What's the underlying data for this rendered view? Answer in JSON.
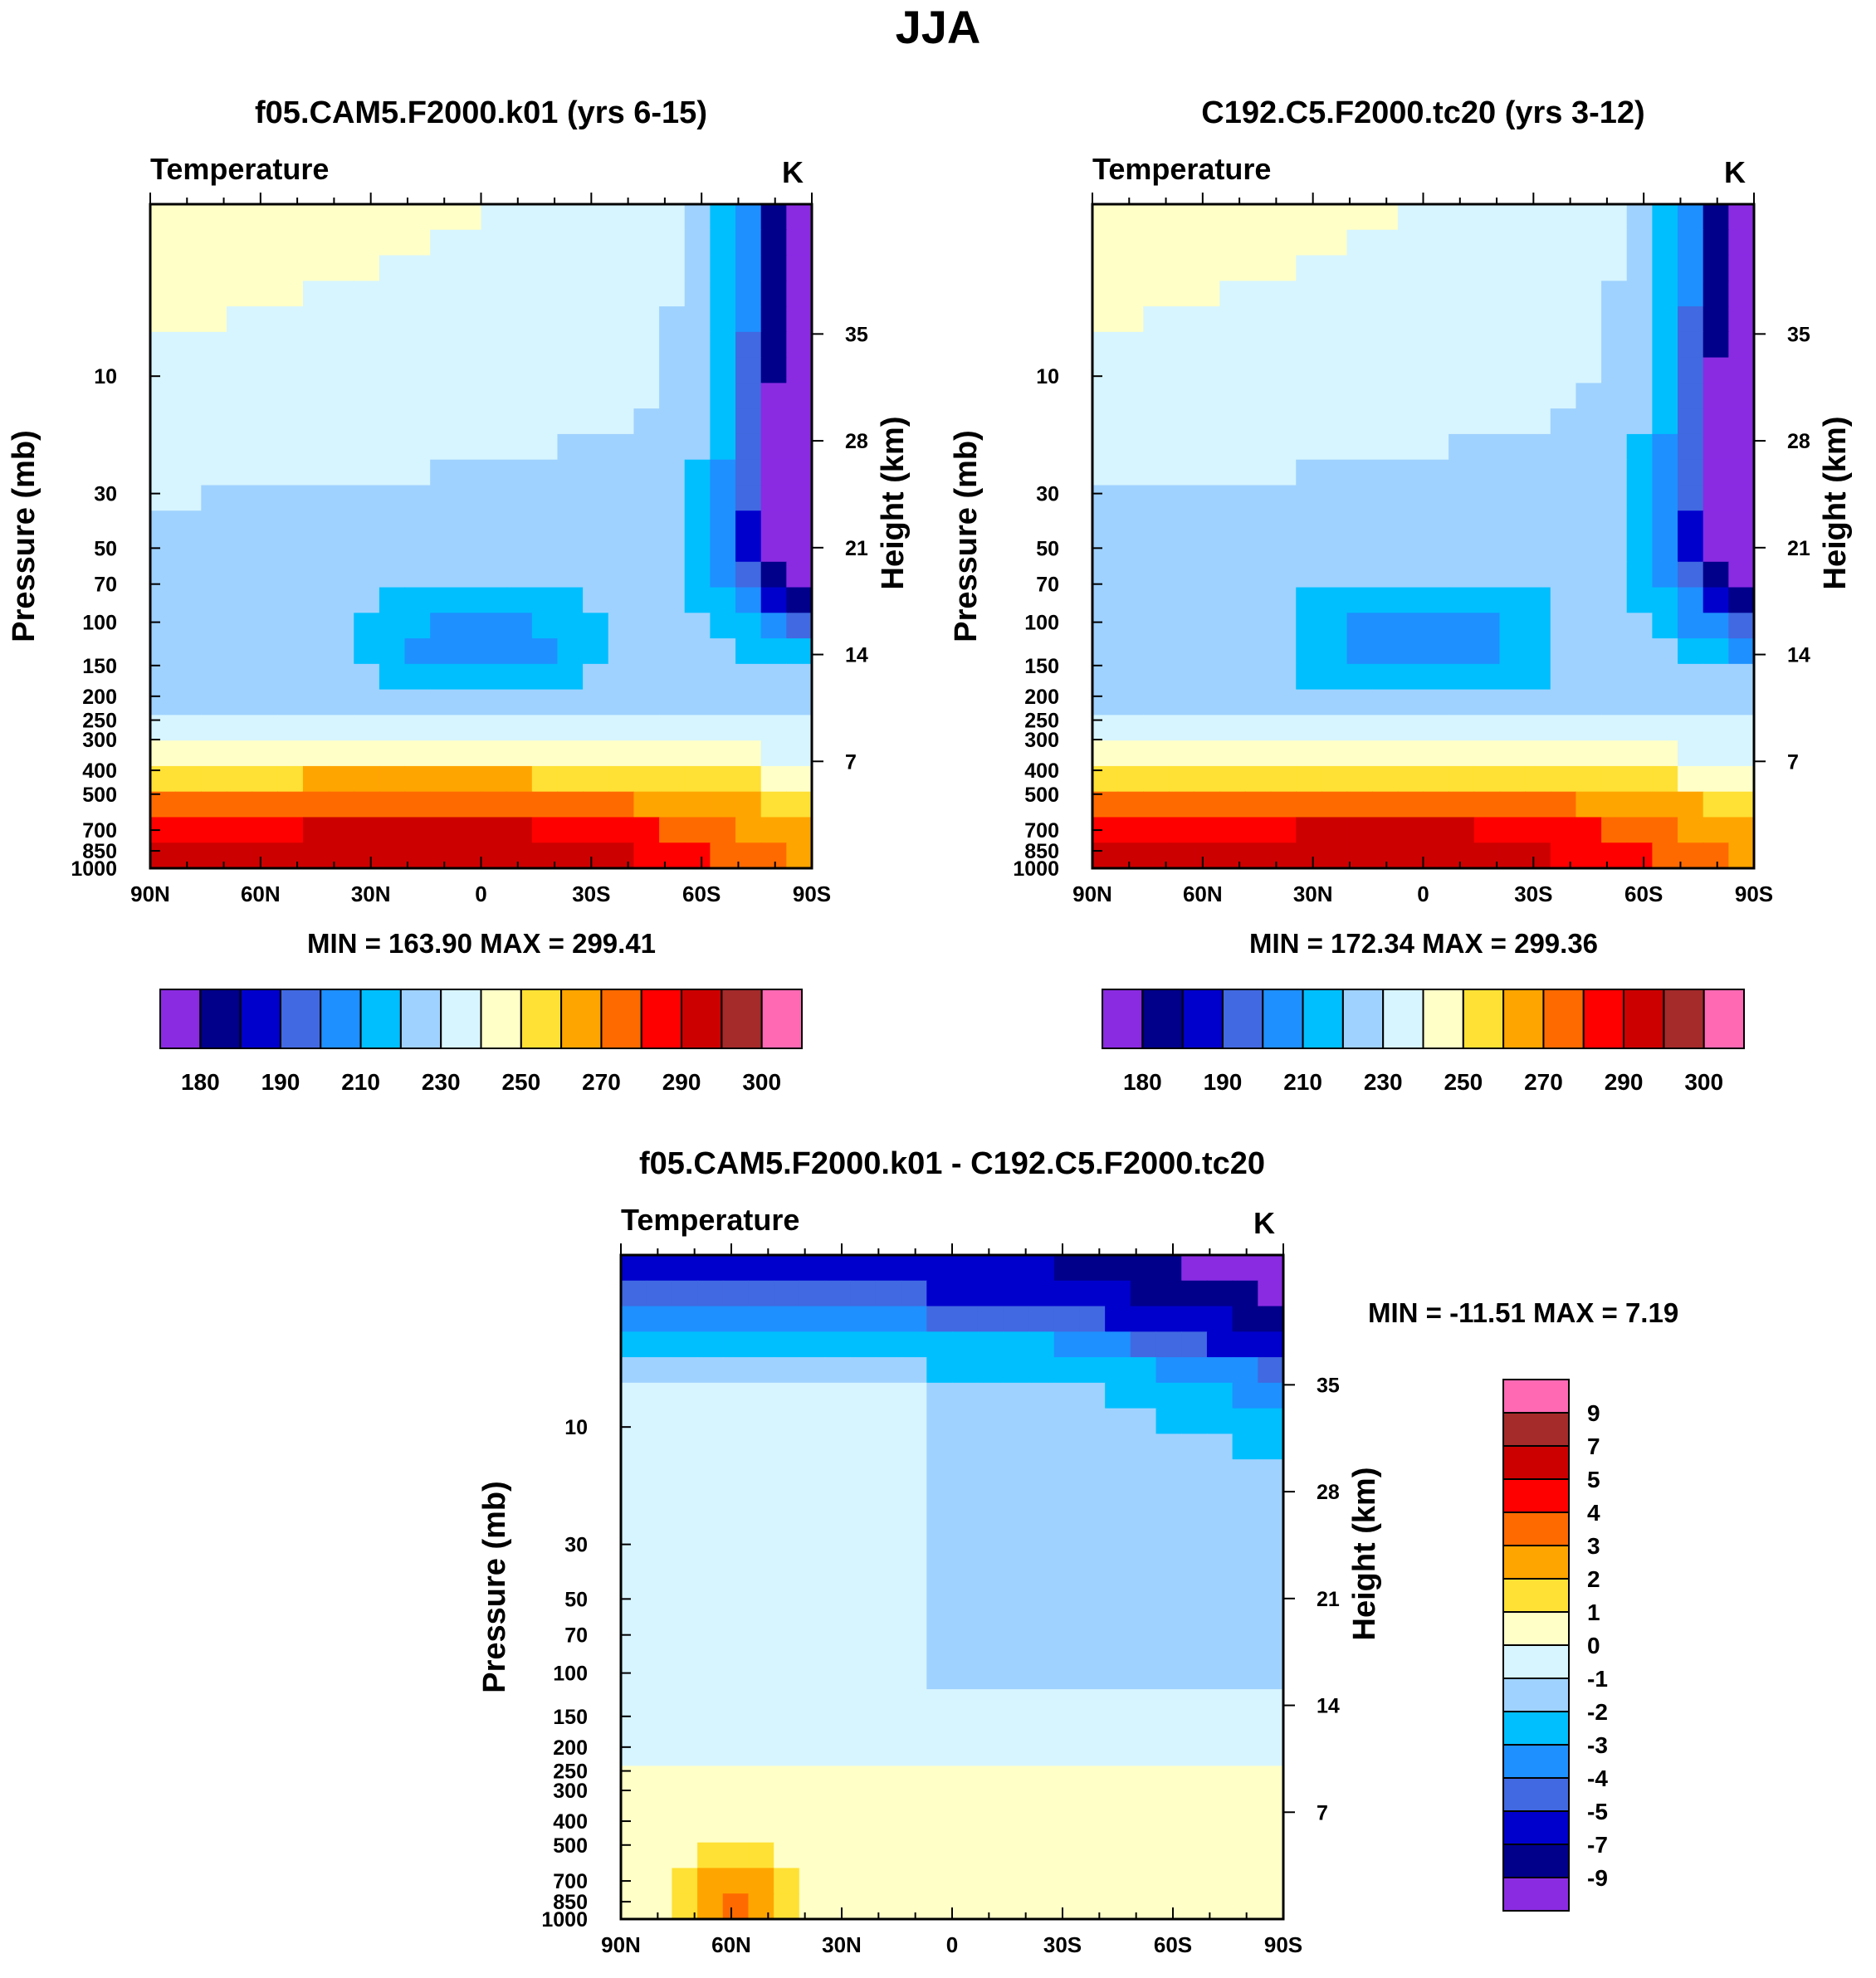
{
  "chart_data": {
    "type": "contour",
    "suptitle": "JJA",
    "palette": [
      "#8a2be2",
      "#00008b",
      "#0000cd",
      "#4169e1",
      "#1e90ff",
      "#00bfff",
      "#a0d2ff",
      "#d7f5ff",
      "#ffffc8",
      "#ffe135",
      "#ffa500",
      "#ff6a00",
      "#ff0000",
      "#cd0000",
      "#a52a2a",
      "#ff69b4"
    ],
    "pressure_ticks": [
      "10",
      "30",
      "50",
      "70",
      "100",
      "150",
      "200",
      "250",
      "300",
      "400",
      "500",
      "700",
      "850",
      "1000"
    ],
    "height_ticks": [
      "35",
      "28",
      "21",
      "14",
      "7"
    ],
    "lat_ticks": [
      "90N",
      "60N",
      "30N",
      "0",
      "30S",
      "60S",
      "90S"
    ],
    "panels": [
      {
        "title": "f05.CAM5.F2000.k01 (yrs 6-15)",
        "subtitle_left": "Temperature",
        "subtitle_right": "K",
        "ylabel": "Pressure (mb)",
        "ylabel_right": "Height (km)",
        "stats": "MIN = 163.90  MAX = 299.41",
        "min": 163.9,
        "max": 299.41,
        "colorbar_labels": [
          "180",
          "190",
          "210",
          "230",
          "250",
          "270",
          "290",
          "300"
        ]
      },
      {
        "title": "C192.C5.F2000.tc20 (yrs 3-12)",
        "subtitle_left": "Temperature",
        "subtitle_right": "K",
        "ylabel": "Pressure (mb)",
        "ylabel_right": "Height (km)",
        "stats": "MIN = 172.34  MAX = 299.36",
        "min": 172.34,
        "max": 299.36,
        "colorbar_labels": [
          "180",
          "190",
          "210",
          "230",
          "250",
          "270",
          "290",
          "300"
        ]
      },
      {
        "title": "f05.CAM5.F2000.k01 - C192.C5.F2000.tc20",
        "subtitle_left": "Temperature",
        "subtitle_right": "K",
        "ylabel": "Pressure (mb)",
        "ylabel_right": "Height (km)",
        "stats": "MIN = -11.51  MAX =    7.19",
        "min": -11.51,
        "max": 7.19,
        "colorbar_labels": [
          "9",
          "7",
          "5",
          "4",
          "3",
          "2",
          "1",
          "0",
          "-1",
          "-2",
          "-3",
          "-4",
          "-5",
          "-7",
          "-9"
        ]
      }
    ]
  }
}
